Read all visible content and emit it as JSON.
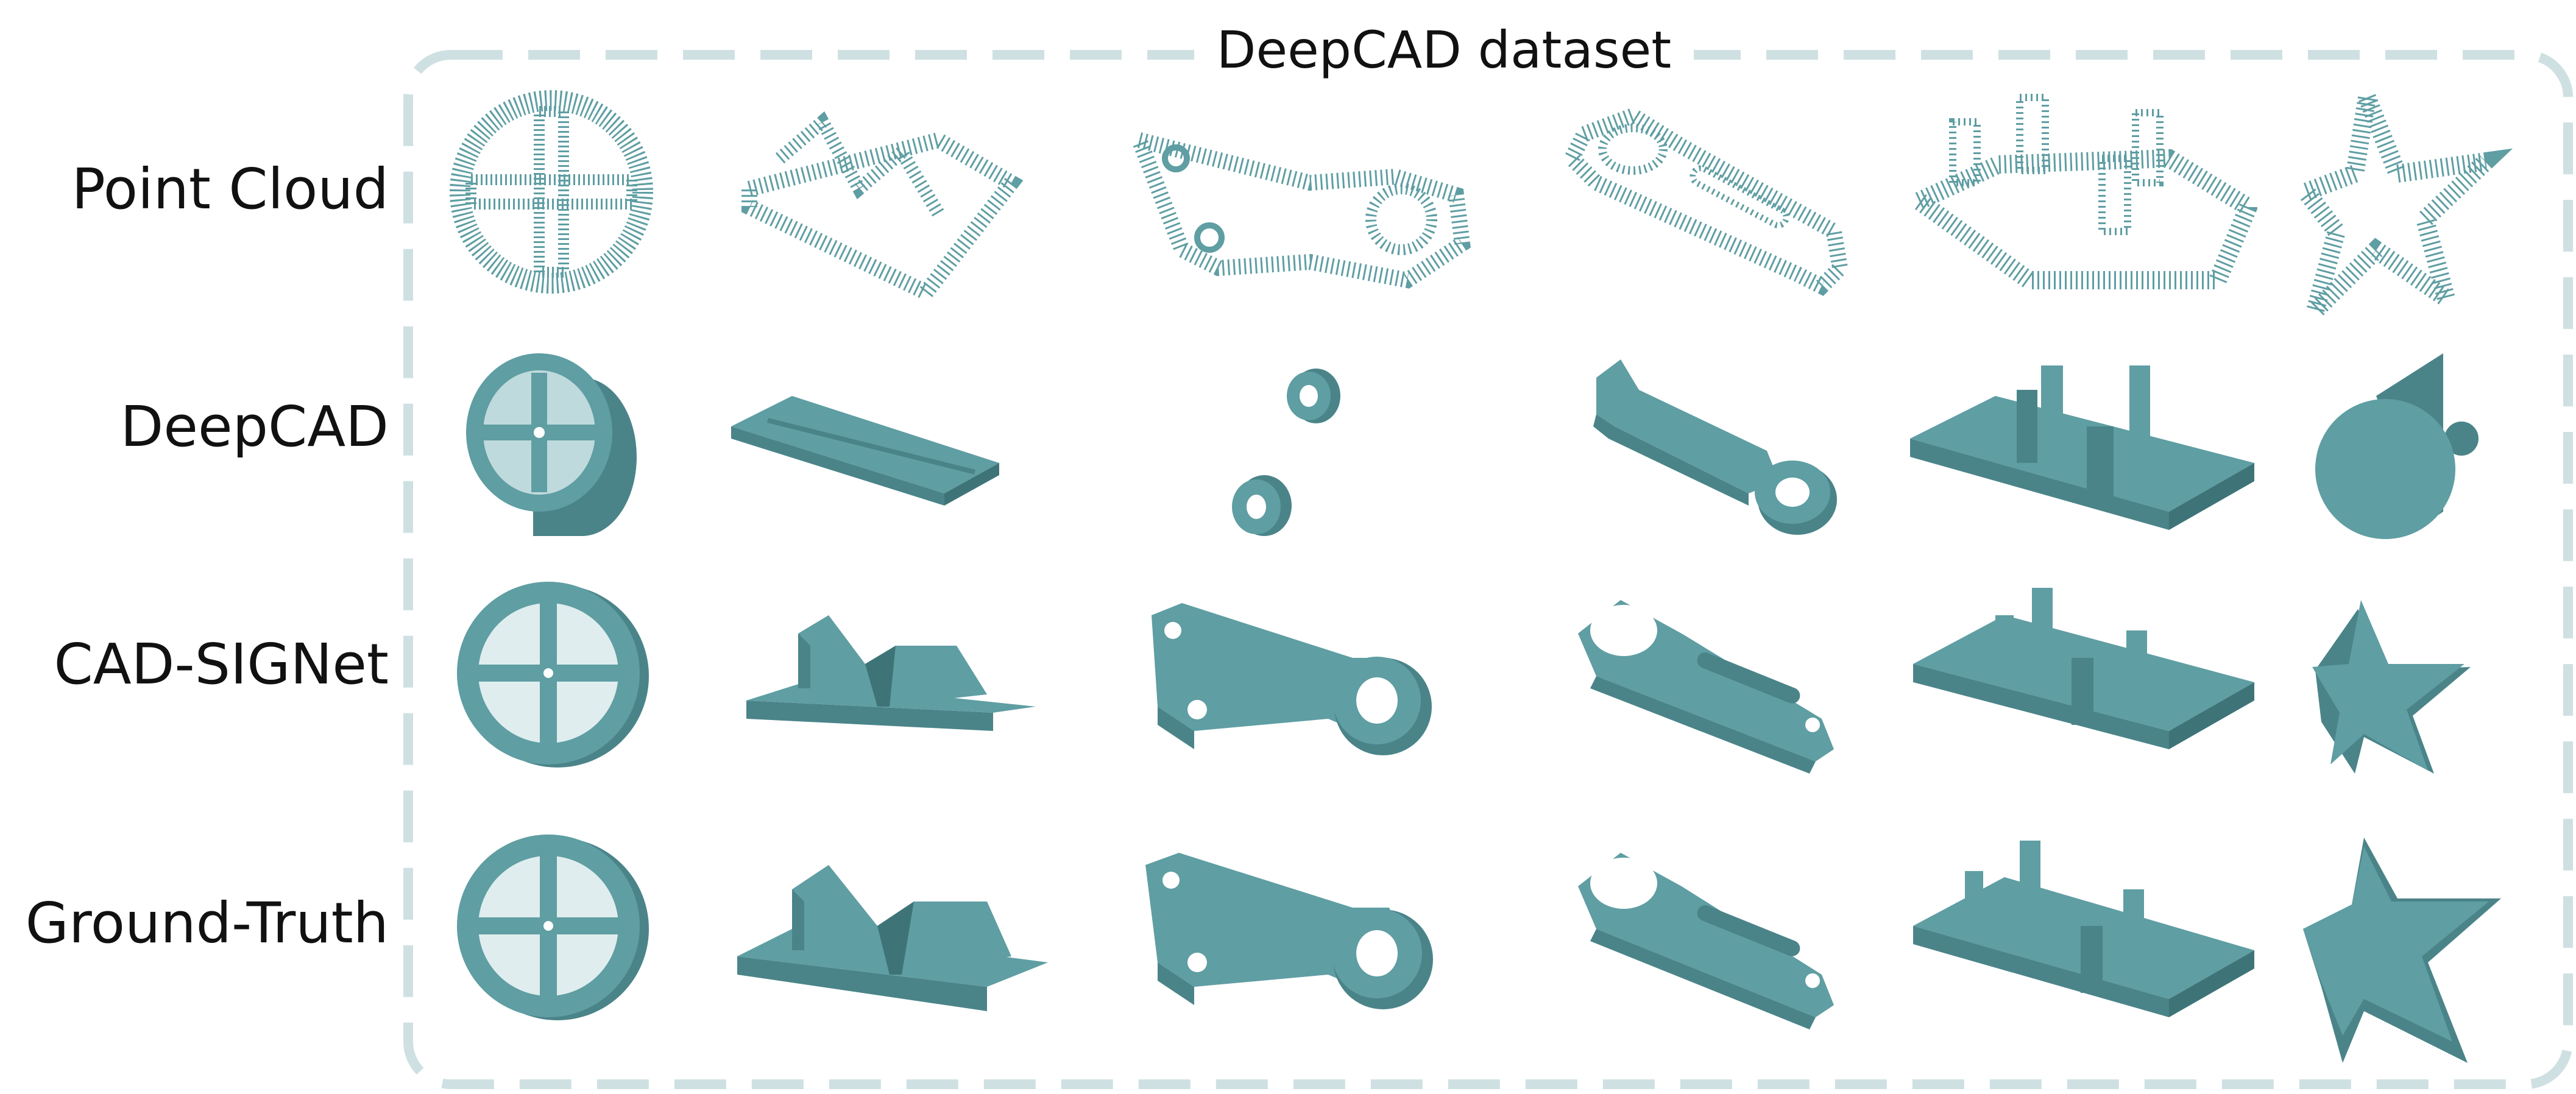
{
  "figure": {
    "frame_title": "DeepCAD dataset",
    "rows": [
      {
        "key": "pointcloud",
        "label": "Point Cloud"
      },
      {
        "key": "deepcad",
        "label": "DeepCAD"
      },
      {
        "key": "cadsignet",
        "label": "CAD-SIGNet"
      },
      {
        "key": "groundtruth",
        "label": "Ground-Truth"
      }
    ],
    "columns": [
      {
        "key": "wheel",
        "object": "wheel"
      },
      {
        "key": "v-block",
        "object": "v-block"
      },
      {
        "key": "bracket",
        "object": "bracket"
      },
      {
        "key": "lever-arm",
        "object": "lever-arm"
      },
      {
        "key": "plate-with-pins",
        "object": "plate-with-pins"
      },
      {
        "key": "star",
        "object": "star"
      }
    ],
    "colors": {
      "shape": "#5f9ea3",
      "shape_dark": "#4a8489",
      "shape_light": "#7fb6ba",
      "frame": "#cfe0e2",
      "text": "#111111"
    }
  }
}
